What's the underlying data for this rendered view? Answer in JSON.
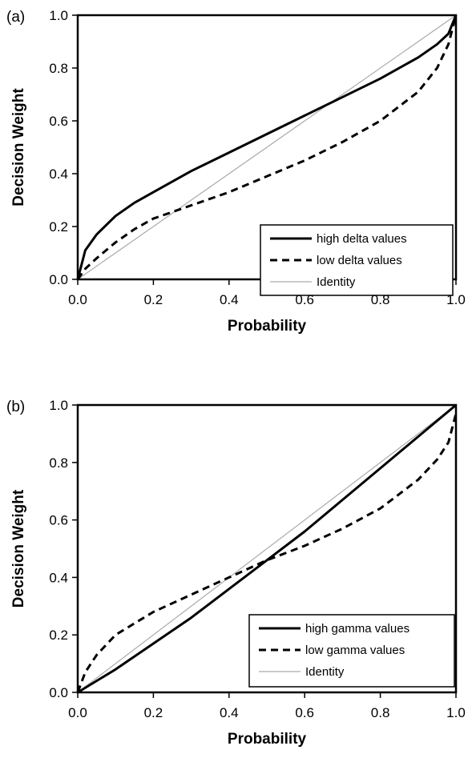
{
  "chart_data": [
    {
      "type": "line",
      "panel_label": "(a)",
      "xlabel": "Probability",
      "ylabel": "Decision Weight",
      "xlim": [
        0,
        1
      ],
      "ylim": [
        0,
        1
      ],
      "x_ticks": [
        "0.0",
        "0.2",
        "0.4",
        "0.6",
        "0.8",
        "1.0"
      ],
      "y_ticks": [
        "0.0",
        "0.2",
        "0.4",
        "0.6",
        "0.8",
        "1.0"
      ],
      "grid": false,
      "legend_position": "bottom-right",
      "series": [
        {
          "name": "high delta values",
          "style": "solid-thick",
          "color": "#000000",
          "x": [
            0,
            0.02,
            0.05,
            0.1,
            0.15,
            0.2,
            0.3,
            0.4,
            0.5,
            0.6,
            0.7,
            0.8,
            0.9,
            0.95,
            0.98,
            1.0
          ],
          "y": [
            0,
            0.11,
            0.17,
            0.24,
            0.29,
            0.33,
            0.41,
            0.48,
            0.55,
            0.62,
            0.69,
            0.76,
            0.84,
            0.89,
            0.93,
            1.0
          ]
        },
        {
          "name": "low delta values",
          "style": "dashed",
          "color": "#000000",
          "x": [
            0,
            0.02,
            0.05,
            0.1,
            0.15,
            0.2,
            0.3,
            0.4,
            0.5,
            0.6,
            0.7,
            0.8,
            0.9,
            0.95,
            0.98,
            1.0
          ],
          "y": [
            0,
            0.04,
            0.08,
            0.14,
            0.19,
            0.23,
            0.28,
            0.33,
            0.39,
            0.45,
            0.52,
            0.6,
            0.71,
            0.8,
            0.89,
            1.0
          ]
        },
        {
          "name": "Identity",
          "style": "solid-thin",
          "color": "#aaaaaa",
          "x": [
            0,
            1
          ],
          "y": [
            0,
            1
          ]
        }
      ]
    },
    {
      "type": "line",
      "panel_label": "(b)",
      "xlabel": "Probability",
      "ylabel": "Decision Weight",
      "xlim": [
        0,
        1
      ],
      "ylim": [
        0,
        1
      ],
      "x_ticks": [
        "0.0",
        "0.2",
        "0.4",
        "0.6",
        "0.8",
        "1.0"
      ],
      "y_ticks": [
        "0.0",
        "0.2",
        "0.4",
        "0.6",
        "0.8",
        "1.0"
      ],
      "grid": false,
      "legend_position": "bottom-right",
      "series": [
        {
          "name": "high gamma values",
          "style": "solid-thick",
          "color": "#000000",
          "x": [
            0,
            0.05,
            0.1,
            0.2,
            0.3,
            0.4,
            0.5,
            0.6,
            0.7,
            0.8,
            0.9,
            1.0
          ],
          "y": [
            0,
            0.04,
            0.08,
            0.17,
            0.26,
            0.36,
            0.46,
            0.56,
            0.67,
            0.78,
            0.89,
            1.0
          ]
        },
        {
          "name": "low gamma values",
          "style": "dashed",
          "color": "#000000",
          "x": [
            0,
            0.02,
            0.05,
            0.1,
            0.15,
            0.2,
            0.3,
            0.4,
            0.5,
            0.6,
            0.7,
            0.8,
            0.9,
            0.95,
            0.98,
            1.0
          ],
          "y": [
            0,
            0.07,
            0.13,
            0.2,
            0.24,
            0.28,
            0.34,
            0.4,
            0.46,
            0.51,
            0.57,
            0.64,
            0.74,
            0.81,
            0.87,
            0.97
          ]
        },
        {
          "name": "Identity",
          "style": "solid-thin",
          "color": "#aaaaaa",
          "x": [
            0,
            1
          ],
          "y": [
            0,
            1
          ]
        }
      ]
    }
  ]
}
